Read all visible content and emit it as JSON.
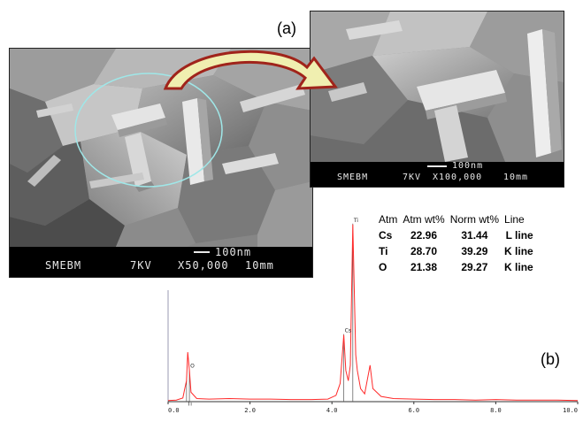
{
  "panel_labels": {
    "a": "(a)",
    "b": "(b)"
  },
  "sem_large": {
    "scale_bar": "100nm",
    "lab": "SMEBM",
    "voltage": "7KV",
    "magnification": "X50,000",
    "working_distance": "10mm"
  },
  "sem_zoom": {
    "scale_bar": "100nm",
    "lab": "SMEBM",
    "voltage": "7KV",
    "magnification": "X100,000",
    "working_distance": "10mm"
  },
  "colors": {
    "spectrum": "#ff2a2a",
    "circle": "#9fe7e8",
    "arrow_fill": "#f0efb0",
    "arrow_stroke": "#a0241b"
  },
  "eds_table": {
    "headers": [
      "Atm",
      "Atm wt%",
      "Norm wt%",
      "Line"
    ],
    "rows": [
      [
        "Cs",
        "22.96",
        "31.44",
        "L line"
      ],
      [
        "Ti",
        "28.70",
        "39.29",
        "K line"
      ],
      [
        "O",
        "21.38",
        "29.27",
        "K line"
      ]
    ]
  },
  "chart_data": {
    "type": "line",
    "title": "",
    "xlabel": "",
    "ylabel": "",
    "xlim": [
      0,
      10
    ],
    "x_ticks": [
      "0.0",
      "2.0",
      "4.0",
      "6.0",
      "8.0",
      "10.0"
    ],
    "peak_labels": [
      {
        "label": "O",
        "x": 0.52
      },
      {
        "label": "Ti",
        "x": 0.45
      },
      {
        "label": "Cs",
        "x": 4.29
      },
      {
        "label": "Ti",
        "x": 4.51
      }
    ],
    "series": [
      {
        "values": [
          [
            0.0,
            2
          ],
          [
            0.2,
            3
          ],
          [
            0.36,
            7
          ],
          [
            0.4,
            22
          ],
          [
            0.45,
            40
          ],
          [
            0.48,
            95
          ],
          [
            0.52,
            60
          ],
          [
            0.56,
            18
          ],
          [
            0.7,
            6
          ],
          [
            1.0,
            5
          ],
          [
            1.5,
            6
          ],
          [
            2.0,
            5
          ],
          [
            2.5,
            5
          ],
          [
            3.0,
            4
          ],
          [
            3.5,
            4
          ],
          [
            3.9,
            5
          ],
          [
            4.1,
            12
          ],
          [
            4.2,
            35
          ],
          [
            4.29,
            128
          ],
          [
            4.34,
            60
          ],
          [
            4.4,
            40
          ],
          [
            4.45,
            70
          ],
          [
            4.51,
            340
          ],
          [
            4.58,
            90
          ],
          [
            4.62,
            60
          ],
          [
            4.7,
            25
          ],
          [
            4.8,
            15
          ],
          [
            4.93,
            70
          ],
          [
            5.0,
            25
          ],
          [
            5.2,
            10
          ],
          [
            5.5,
            6
          ],
          [
            6.0,
            5
          ],
          [
            6.5,
            4
          ],
          [
            7.0,
            4
          ],
          [
            7.5,
            3
          ],
          [
            8.0,
            4
          ],
          [
            8.5,
            3
          ],
          [
            9.0,
            3
          ],
          [
            9.5,
            3
          ],
          [
            10.0,
            2
          ]
        ]
      }
    ]
  }
}
